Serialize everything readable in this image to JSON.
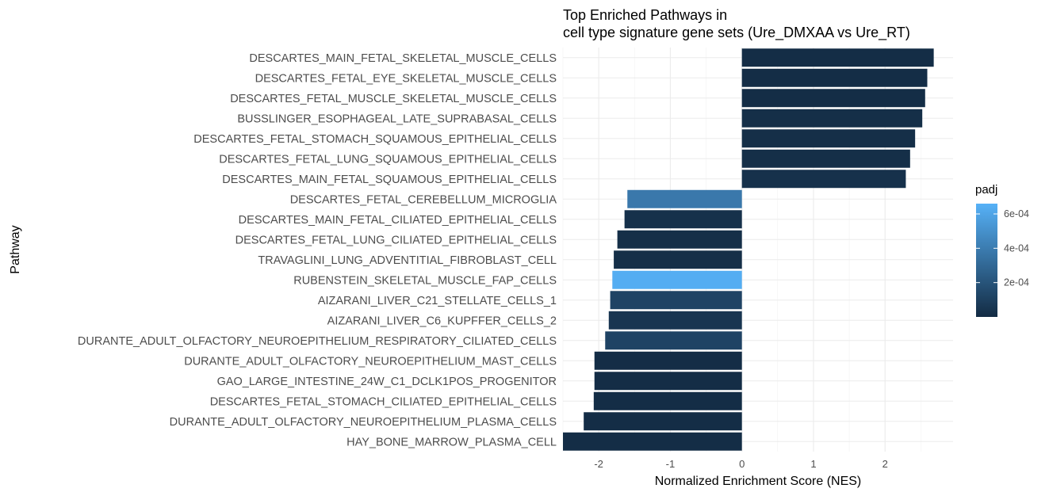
{
  "chart_data": {
    "type": "bar",
    "orientation": "horizontal",
    "title": [
      "Top Enriched Pathways in",
      "cell type signature gene sets (Ure_DMXAA vs Ure_RT)"
    ],
    "xlabel": "Normalized Enrichment Score (NES)",
    "ylabel": "Pathway",
    "xlim": [
      -2.5,
      2.95
    ],
    "xticks": [
      -2,
      -1,
      0,
      1,
      2
    ],
    "xtick_labels": [
      "-2",
      "-1",
      "0",
      "1",
      "2"
    ],
    "grid": true,
    "categories": [
      "DESCARTES_MAIN_FETAL_SKELETAL_MUSCLE_CELLS",
      "DESCARTES_FETAL_EYE_SKELETAL_MUSCLE_CELLS",
      "DESCARTES_FETAL_MUSCLE_SKELETAL_MUSCLE_CELLS",
      "BUSSLINGER_ESOPHAGEAL_LATE_SUPRABASAL_CELLS",
      "DESCARTES_FETAL_STOMACH_SQUAMOUS_EPITHELIAL_CELLS",
      "DESCARTES_FETAL_LUNG_SQUAMOUS_EPITHELIAL_CELLS",
      "DESCARTES_MAIN_FETAL_SQUAMOUS_EPITHELIAL_CELLS",
      "DESCARTES_FETAL_CEREBELLUM_MICROGLIA",
      "DESCARTES_MAIN_FETAL_CILIATED_EPITHELIAL_CELLS",
      "DESCARTES_FETAL_LUNG_CILIATED_EPITHELIAL_CELLS",
      "TRAVAGLINI_LUNG_ADVENTITIAL_FIBROBLAST_CELL",
      "RUBENSTEIN_SKELETAL_MUSCLE_FAP_CELLS",
      "AIZARANI_LIVER_C21_STELLATE_CELLS_1",
      "AIZARANI_LIVER_C6_KUPFFER_CELLS_2",
      "DURANTE_ADULT_OLFACTORY_NEUROEPITHELIUM_RESPIRATORY_CILIATED_CELLS",
      "DURANTE_ADULT_OLFACTORY_NEUROEPITHELIUM_MAST_CELLS",
      "GAO_LARGE_INTESTINE_24W_C1_DCLK1POS_PROGENITOR",
      "DESCARTES_FETAL_STOMACH_CILIATED_EPITHELIAL_CELLS",
      "DURANTE_ADULT_OLFACTORY_NEUROEPITHELIUM_PLASMA_CELLS",
      "HAY_BONE_MARROW_PLASMA_CELL"
    ],
    "values": [
      2.68,
      2.59,
      2.56,
      2.52,
      2.42,
      2.35,
      2.29,
      -1.6,
      -1.64,
      -1.74,
      -1.79,
      -1.81,
      -1.84,
      -1.86,
      -1.91,
      -2.06,
      -2.06,
      -2.07,
      -2.21,
      -2.5
    ],
    "padj": [
      1e-05,
      1e-05,
      1e-05,
      2e-05,
      2e-05,
      2e-05,
      3e-05,
      0.00038,
      3e-05,
      2e-05,
      2e-05,
      0.00064,
      0.00012,
      5e-05,
      0.00012,
      1e-05,
      1e-05,
      1e-05,
      1e-05,
      1e-05
    ],
    "legend": {
      "title": "padj",
      "position": "right",
      "type": "colorbar",
      "range": [
        0.0,
        0.00066
      ],
      "ticks": [
        0.0002,
        0.0004,
        0.0006
      ],
      "tick_labels": [
        "2e-04",
        "4e-04",
        "6e-04"
      ],
      "low_color": "#132B43",
      "high_color": "#56B1F7"
    }
  }
}
